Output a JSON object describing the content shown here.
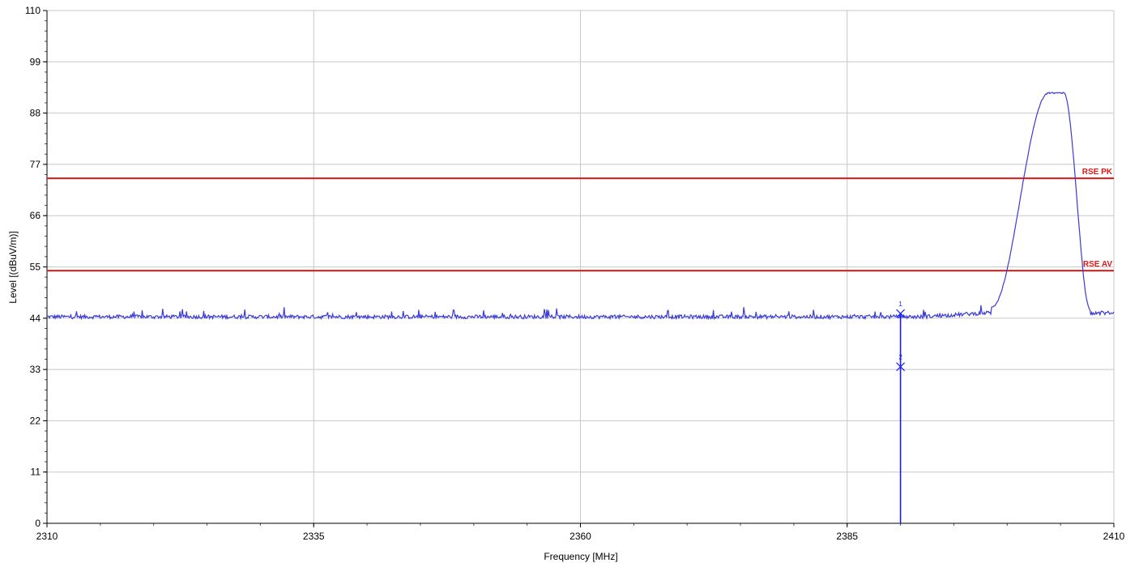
{
  "chart_data": {
    "type": "line",
    "title": "",
    "xlabel": "Frequency [MHz]",
    "ylabel": "Level [(dBuV/m)]",
    "xlim": [
      2310,
      2410
    ],
    "ylim": [
      0,
      110
    ],
    "x_ticks": [
      2310,
      2335,
      2360,
      2385,
      2410
    ],
    "y_ticks": [
      0,
      11,
      22,
      33,
      44,
      55,
      66,
      77,
      88,
      99,
      110
    ],
    "grid": true,
    "colors": {
      "trace": "#3b3bd6",
      "limit": "#e01818",
      "marker": "#1a1aff",
      "grid": "#c8c8c8"
    },
    "limits": [
      {
        "name": "RSE PK",
        "value": 74
      },
      {
        "name": "RSE AV",
        "value": 54.2
      }
    ],
    "series": [
      {
        "noise_floor": 44.3,
        "peak": {
          "start": 2398.5,
          "rise_end": 2403.9,
          "top_end": 2405.3,
          "fall_end": 2407.8,
          "level": 92.3
        }
      }
    ],
    "markers": [
      {
        "label": "1",
        "x": 2390,
        "y": 45.0
      },
      {
        "label": "2",
        "x": 2390,
        "y": 33.6
      }
    ]
  }
}
